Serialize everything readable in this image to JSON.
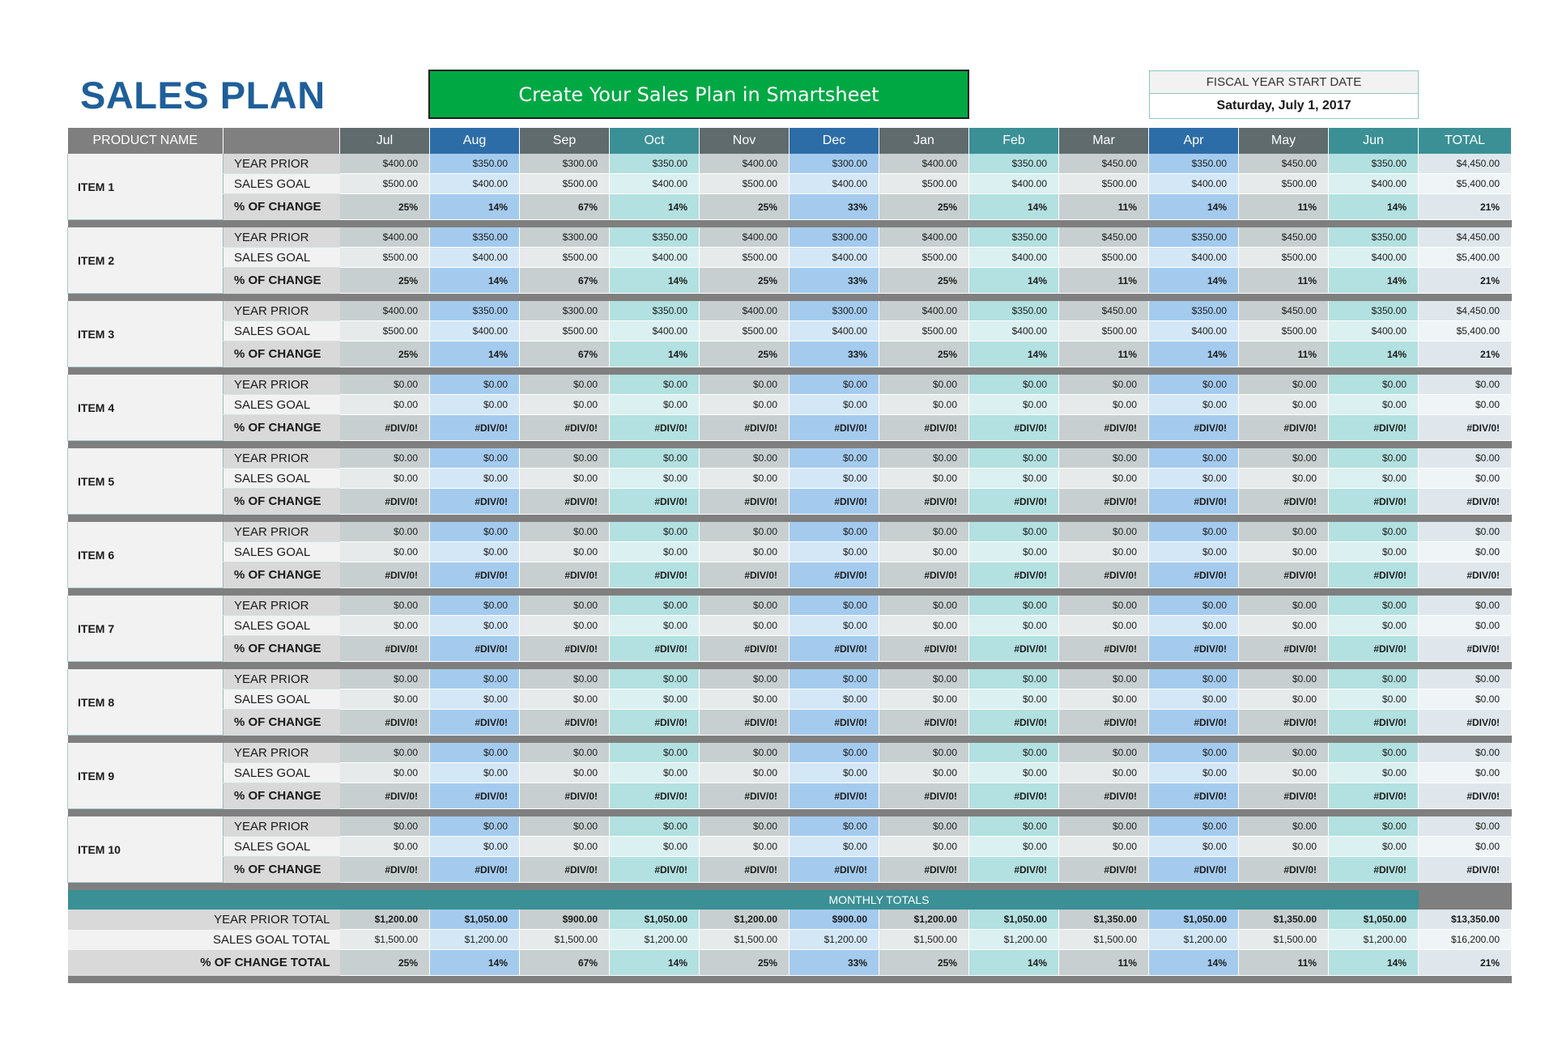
{
  "title": "SALES PLAN",
  "banner": "Create Your Sales Plan in Smartsheet",
  "fiscal": {
    "label": "FISCAL YEAR START DATE",
    "value": "Saturday, July 1, 2017"
  },
  "header": {
    "product": "PRODUCT NAME",
    "months": [
      "Jul",
      "Aug",
      "Sep",
      "Oct",
      "Nov",
      "Dec",
      "Jan",
      "Feb",
      "Mar",
      "Apr",
      "May",
      "Jun"
    ],
    "total": "TOTAL"
  },
  "row_labels": {
    "year_prior": "YEAR PRIOR",
    "sales_goal": "SALES GOAL",
    "pct_change": "% OF CHANGE"
  },
  "items": [
    {
      "name": "ITEM 1",
      "year_prior": [
        "$400.00",
        "$350.00",
        "$300.00",
        "$350.00",
        "$400.00",
        "$300.00",
        "$400.00",
        "$350.00",
        "$450.00",
        "$350.00",
        "$450.00",
        "$350.00",
        "$4,450.00"
      ],
      "sales_goal": [
        "$500.00",
        "$400.00",
        "$500.00",
        "$400.00",
        "$500.00",
        "$400.00",
        "$500.00",
        "$400.00",
        "$500.00",
        "$400.00",
        "$500.00",
        "$400.00",
        "$5,400.00"
      ],
      "pct_change": [
        "25%",
        "14%",
        "67%",
        "14%",
        "25%",
        "33%",
        "25%",
        "14%",
        "11%",
        "14%",
        "11%",
        "14%",
        "21%"
      ]
    },
    {
      "name": "ITEM 2",
      "year_prior": [
        "$400.00",
        "$350.00",
        "$300.00",
        "$350.00",
        "$400.00",
        "$300.00",
        "$400.00",
        "$350.00",
        "$450.00",
        "$350.00",
        "$450.00",
        "$350.00",
        "$4,450.00"
      ],
      "sales_goal": [
        "$500.00",
        "$400.00",
        "$500.00",
        "$400.00",
        "$500.00",
        "$400.00",
        "$500.00",
        "$400.00",
        "$500.00",
        "$400.00",
        "$500.00",
        "$400.00",
        "$5,400.00"
      ],
      "pct_change": [
        "25%",
        "14%",
        "67%",
        "14%",
        "25%",
        "33%",
        "25%",
        "14%",
        "11%",
        "14%",
        "11%",
        "14%",
        "21%"
      ]
    },
    {
      "name": "ITEM 3",
      "year_prior": [
        "$400.00",
        "$350.00",
        "$300.00",
        "$350.00",
        "$400.00",
        "$300.00",
        "$400.00",
        "$350.00",
        "$450.00",
        "$350.00",
        "$450.00",
        "$350.00",
        "$4,450.00"
      ],
      "sales_goal": [
        "$500.00",
        "$400.00",
        "$500.00",
        "$400.00",
        "$500.00",
        "$400.00",
        "$500.00",
        "$400.00",
        "$500.00",
        "$400.00",
        "$500.00",
        "$400.00",
        "$5,400.00"
      ],
      "pct_change": [
        "25%",
        "14%",
        "67%",
        "14%",
        "25%",
        "33%",
        "25%",
        "14%",
        "11%",
        "14%",
        "11%",
        "14%",
        "21%"
      ]
    },
    {
      "name": "ITEM 4",
      "year_prior": [
        "$0.00",
        "$0.00",
        "$0.00",
        "$0.00",
        "$0.00",
        "$0.00",
        "$0.00",
        "$0.00",
        "$0.00",
        "$0.00",
        "$0.00",
        "$0.00",
        "$0.00"
      ],
      "sales_goal": [
        "$0.00",
        "$0.00",
        "$0.00",
        "$0.00",
        "$0.00",
        "$0.00",
        "$0.00",
        "$0.00",
        "$0.00",
        "$0.00",
        "$0.00",
        "$0.00",
        "$0.00"
      ],
      "pct_change": [
        "#DIV/0!",
        "#DIV/0!",
        "#DIV/0!",
        "#DIV/0!",
        "#DIV/0!",
        "#DIV/0!",
        "#DIV/0!",
        "#DIV/0!",
        "#DIV/0!",
        "#DIV/0!",
        "#DIV/0!",
        "#DIV/0!",
        "#DIV/0!"
      ]
    },
    {
      "name": "ITEM 5",
      "year_prior": [
        "$0.00",
        "$0.00",
        "$0.00",
        "$0.00",
        "$0.00",
        "$0.00",
        "$0.00",
        "$0.00",
        "$0.00",
        "$0.00",
        "$0.00",
        "$0.00",
        "$0.00"
      ],
      "sales_goal": [
        "$0.00",
        "$0.00",
        "$0.00",
        "$0.00",
        "$0.00",
        "$0.00",
        "$0.00",
        "$0.00",
        "$0.00",
        "$0.00",
        "$0.00",
        "$0.00",
        "$0.00"
      ],
      "pct_change": [
        "#DIV/0!",
        "#DIV/0!",
        "#DIV/0!",
        "#DIV/0!",
        "#DIV/0!",
        "#DIV/0!",
        "#DIV/0!",
        "#DIV/0!",
        "#DIV/0!",
        "#DIV/0!",
        "#DIV/0!",
        "#DIV/0!",
        "#DIV/0!"
      ]
    },
    {
      "name": "ITEM 6",
      "year_prior": [
        "$0.00",
        "$0.00",
        "$0.00",
        "$0.00",
        "$0.00",
        "$0.00",
        "$0.00",
        "$0.00",
        "$0.00",
        "$0.00",
        "$0.00",
        "$0.00",
        "$0.00"
      ],
      "sales_goal": [
        "$0.00",
        "$0.00",
        "$0.00",
        "$0.00",
        "$0.00",
        "$0.00",
        "$0.00",
        "$0.00",
        "$0.00",
        "$0.00",
        "$0.00",
        "$0.00",
        "$0.00"
      ],
      "pct_change": [
        "#DIV/0!",
        "#DIV/0!",
        "#DIV/0!",
        "#DIV/0!",
        "#DIV/0!",
        "#DIV/0!",
        "#DIV/0!",
        "#DIV/0!",
        "#DIV/0!",
        "#DIV/0!",
        "#DIV/0!",
        "#DIV/0!",
        "#DIV/0!"
      ]
    },
    {
      "name": "ITEM 7",
      "year_prior": [
        "$0.00",
        "$0.00",
        "$0.00",
        "$0.00",
        "$0.00",
        "$0.00",
        "$0.00",
        "$0.00",
        "$0.00",
        "$0.00",
        "$0.00",
        "$0.00",
        "$0.00"
      ],
      "sales_goal": [
        "$0.00",
        "$0.00",
        "$0.00",
        "$0.00",
        "$0.00",
        "$0.00",
        "$0.00",
        "$0.00",
        "$0.00",
        "$0.00",
        "$0.00",
        "$0.00",
        "$0.00"
      ],
      "pct_change": [
        "#DIV/0!",
        "#DIV/0!",
        "#DIV/0!",
        "#DIV/0!",
        "#DIV/0!",
        "#DIV/0!",
        "#DIV/0!",
        "#DIV/0!",
        "#DIV/0!",
        "#DIV/0!",
        "#DIV/0!",
        "#DIV/0!",
        "#DIV/0!"
      ]
    },
    {
      "name": "ITEM 8",
      "year_prior": [
        "$0.00",
        "$0.00",
        "$0.00",
        "$0.00",
        "$0.00",
        "$0.00",
        "$0.00",
        "$0.00",
        "$0.00",
        "$0.00",
        "$0.00",
        "$0.00",
        "$0.00"
      ],
      "sales_goal": [
        "$0.00",
        "$0.00",
        "$0.00",
        "$0.00",
        "$0.00",
        "$0.00",
        "$0.00",
        "$0.00",
        "$0.00",
        "$0.00",
        "$0.00",
        "$0.00",
        "$0.00"
      ],
      "pct_change": [
        "#DIV/0!",
        "#DIV/0!",
        "#DIV/0!",
        "#DIV/0!",
        "#DIV/0!",
        "#DIV/0!",
        "#DIV/0!",
        "#DIV/0!",
        "#DIV/0!",
        "#DIV/0!",
        "#DIV/0!",
        "#DIV/0!",
        "#DIV/0!"
      ]
    },
    {
      "name": "ITEM 9",
      "year_prior": [
        "$0.00",
        "$0.00",
        "$0.00",
        "$0.00",
        "$0.00",
        "$0.00",
        "$0.00",
        "$0.00",
        "$0.00",
        "$0.00",
        "$0.00",
        "$0.00",
        "$0.00"
      ],
      "sales_goal": [
        "$0.00",
        "$0.00",
        "$0.00",
        "$0.00",
        "$0.00",
        "$0.00",
        "$0.00",
        "$0.00",
        "$0.00",
        "$0.00",
        "$0.00",
        "$0.00",
        "$0.00"
      ],
      "pct_change": [
        "#DIV/0!",
        "#DIV/0!",
        "#DIV/0!",
        "#DIV/0!",
        "#DIV/0!",
        "#DIV/0!",
        "#DIV/0!",
        "#DIV/0!",
        "#DIV/0!",
        "#DIV/0!",
        "#DIV/0!",
        "#DIV/0!",
        "#DIV/0!"
      ]
    },
    {
      "name": "ITEM 10",
      "year_prior": [
        "$0.00",
        "$0.00",
        "$0.00",
        "$0.00",
        "$0.00",
        "$0.00",
        "$0.00",
        "$0.00",
        "$0.00",
        "$0.00",
        "$0.00",
        "$0.00",
        "$0.00"
      ],
      "sales_goal": [
        "$0.00",
        "$0.00",
        "$0.00",
        "$0.00",
        "$0.00",
        "$0.00",
        "$0.00",
        "$0.00",
        "$0.00",
        "$0.00",
        "$0.00",
        "$0.00",
        "$0.00"
      ],
      "pct_change": [
        "#DIV/0!",
        "#DIV/0!",
        "#DIV/0!",
        "#DIV/0!",
        "#DIV/0!",
        "#DIV/0!",
        "#DIV/0!",
        "#DIV/0!",
        "#DIV/0!",
        "#DIV/0!",
        "#DIV/0!",
        "#DIV/0!",
        "#DIV/0!"
      ]
    }
  ],
  "totals": {
    "heading": "MONTHLY TOTALS",
    "year_prior_label": "YEAR PRIOR TOTAL",
    "sales_goal_label": "SALES GOAL TOTAL",
    "pct_change_label": "% OF CHANGE TOTAL",
    "year_prior": [
      "$1,200.00",
      "$1,050.00",
      "$900.00",
      "$1,050.00",
      "$1,200.00",
      "$900.00",
      "$1,200.00",
      "$1,050.00",
      "$1,350.00",
      "$1,050.00",
      "$1,350.00",
      "$1,050.00",
      "$13,350.00"
    ],
    "sales_goal": [
      "$1,500.00",
      "$1,200.00",
      "$1,500.00",
      "$1,200.00",
      "$1,500.00",
      "$1,200.00",
      "$1,500.00",
      "$1,200.00",
      "$1,500.00",
      "$1,200.00",
      "$1,500.00",
      "$1,200.00",
      "$16,200.00"
    ],
    "pct_change": [
      "25%",
      "14%",
      "67%",
      "14%",
      "25%",
      "33%",
      "25%",
      "14%",
      "11%",
      "14%",
      "11%",
      "14%",
      "21%"
    ]
  },
  "colors": {
    "title": "#1f5f99",
    "banner": "#00a844",
    "header_dark": "#5f6b6d",
    "header_blue": "#2d6da7",
    "header_teal": "#3b9095",
    "separator": "#7f7f7f"
  }
}
